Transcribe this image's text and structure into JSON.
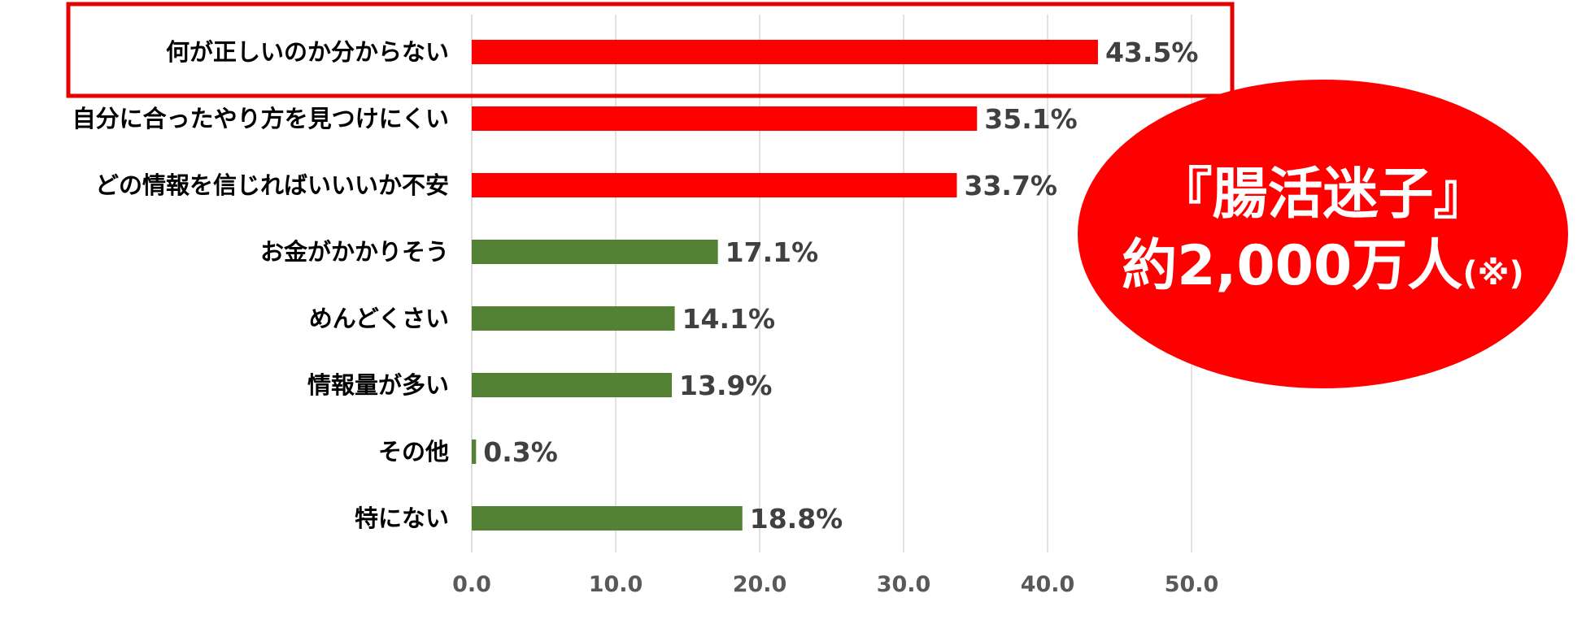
{
  "chart_data": {
    "type": "bar",
    "orientation": "horizontal",
    "categories": [
      "何が正しいのか分からない",
      "自分に合ったやり方を見つけにくい",
      "どの情報を信じればいいいか不安",
      "お金がかかりそう",
      "めんどくさい",
      "情報量が多い",
      "その他",
      "特にない"
    ],
    "values": [
      43.5,
      35.1,
      33.7,
      17.1,
      14.1,
      13.9,
      0.3,
      18.8
    ],
    "value_labels": [
      "43.5%",
      "35.1%",
      "33.7%",
      "17.1%",
      "14.1%",
      "13.9%",
      "0.3%",
      "18.8%"
    ],
    "bar_colors": [
      "#ff0000",
      "#ff0000",
      "#ff0000",
      "#548235",
      "#548235",
      "#548235",
      "#548235",
      "#548235"
    ],
    "xlim": [
      0,
      50
    ],
    "x_ticks": [
      "0.0",
      "10.0",
      "20.0",
      "30.0",
      "40.0",
      "50.0"
    ],
    "grid": "vertical",
    "highlighted_category_index": 0,
    "highlight_color": "#e60000"
  },
  "callout": {
    "line1": "『腸活迷子』",
    "line2": "約2,000万人",
    "note": "(※)",
    "background": "#ff0000",
    "text_color": "#ffffff"
  }
}
